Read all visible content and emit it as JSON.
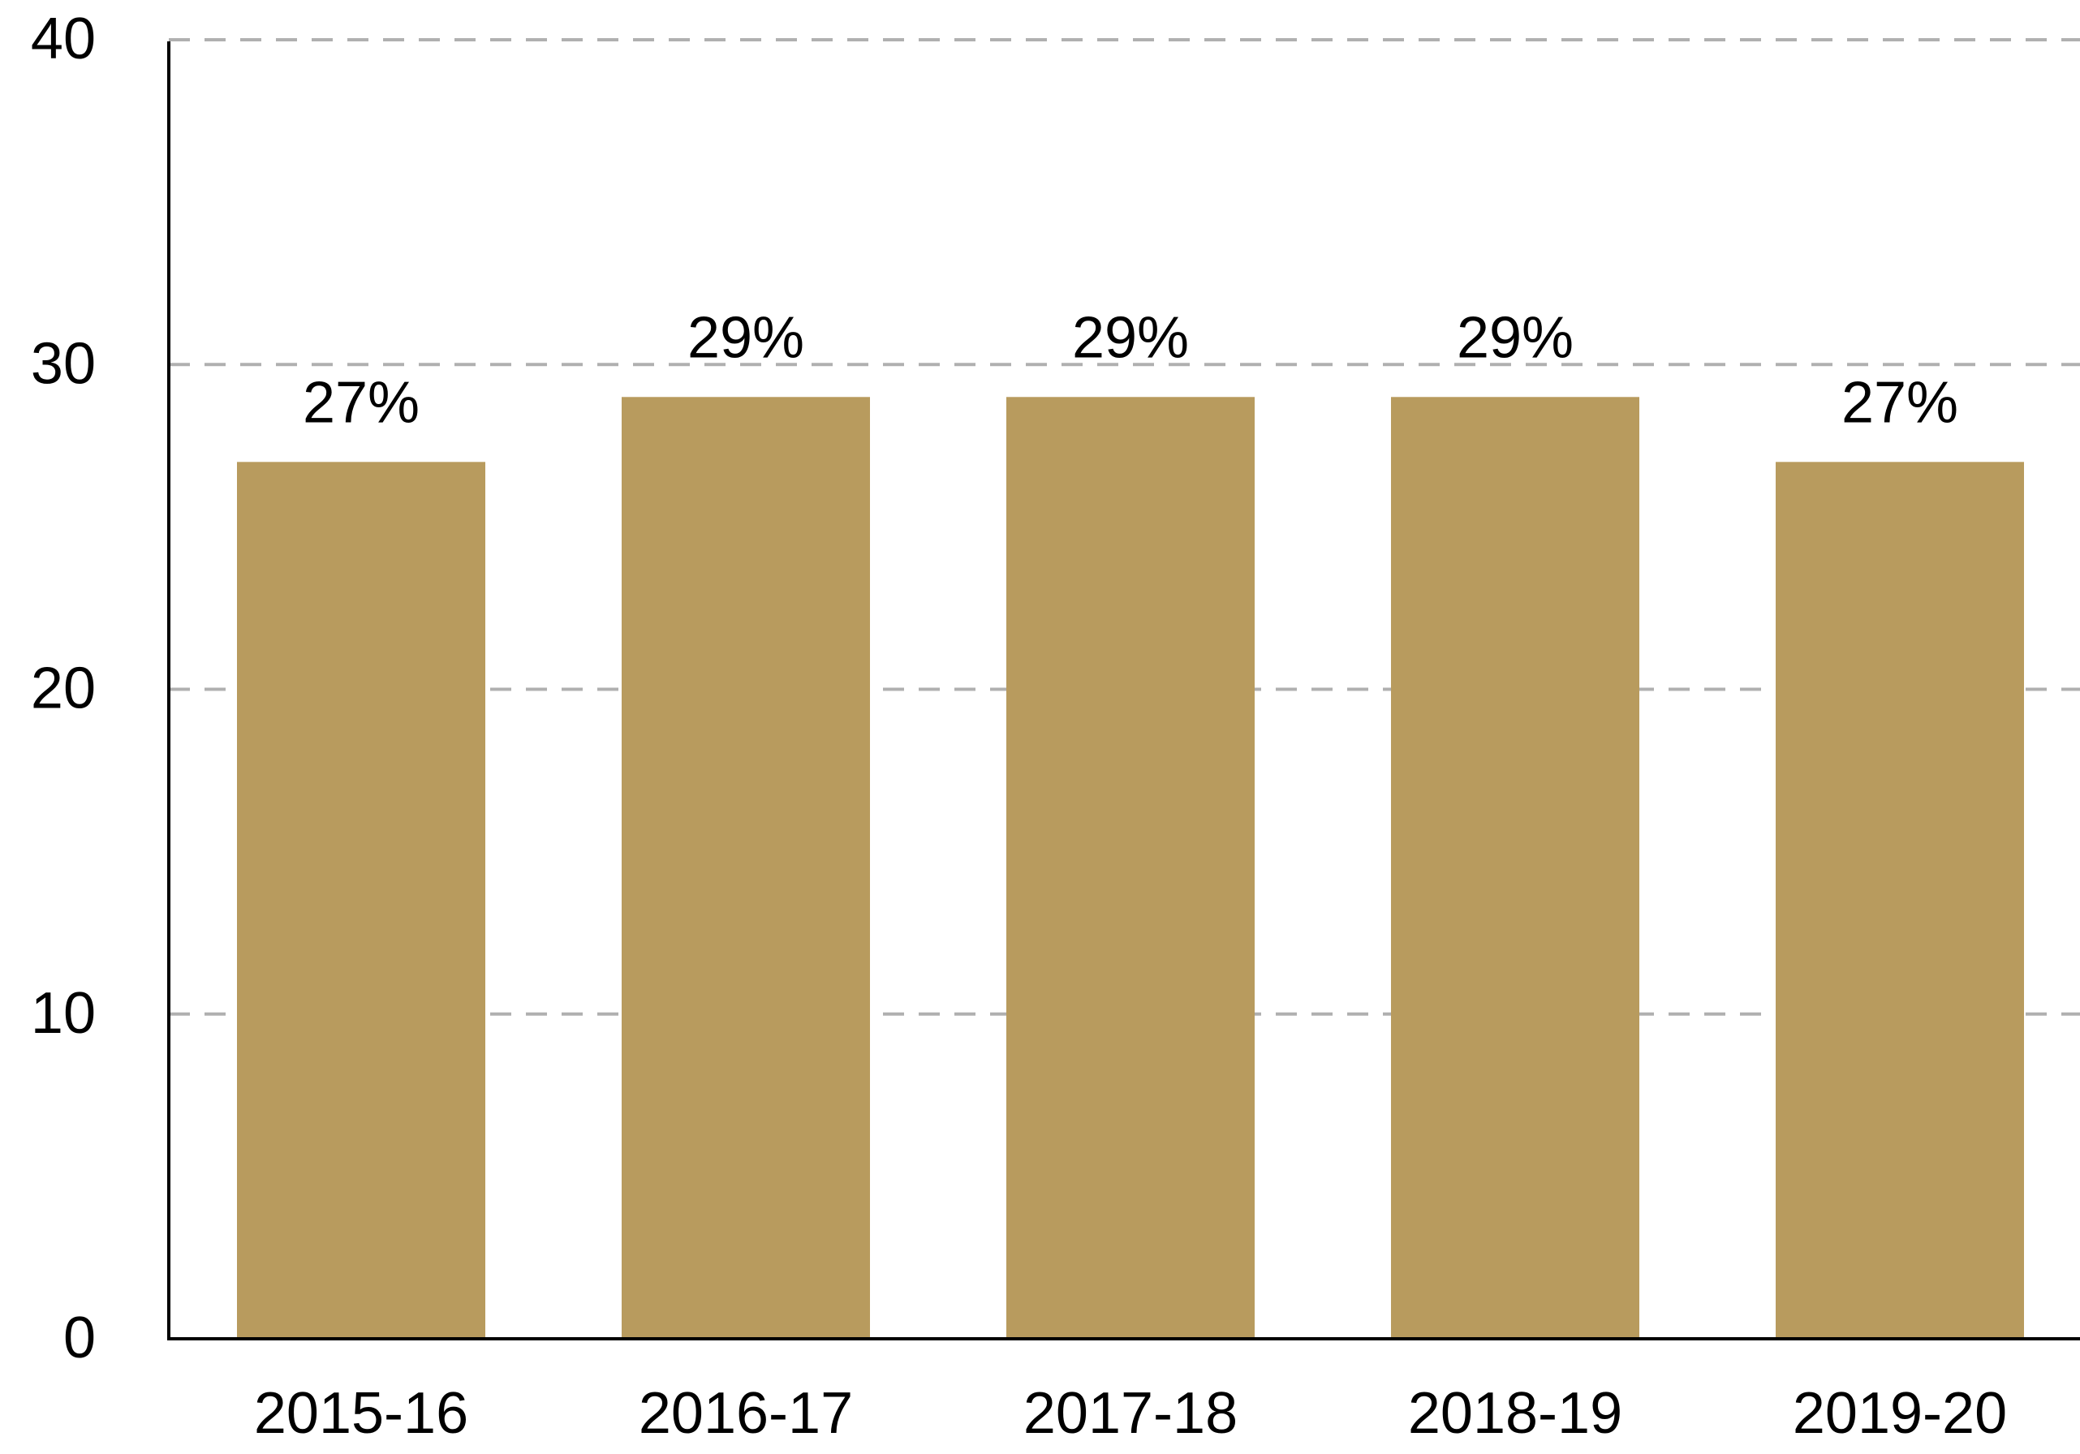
{
  "chart_data": {
    "type": "bar",
    "categories": [
      "2015-16",
      "2016-17",
      "2017-18",
      "2018-19",
      "2019-20"
    ],
    "values": [
      27,
      29,
      29,
      29,
      27
    ],
    "value_labels": [
      "27%",
      "29%",
      "29%",
      "29%",
      "27%"
    ],
    "color": "#b89b5e",
    "ylim": [
      0,
      40
    ],
    "yticks": [
      0,
      10,
      20,
      30,
      40
    ],
    "grid": true
  }
}
